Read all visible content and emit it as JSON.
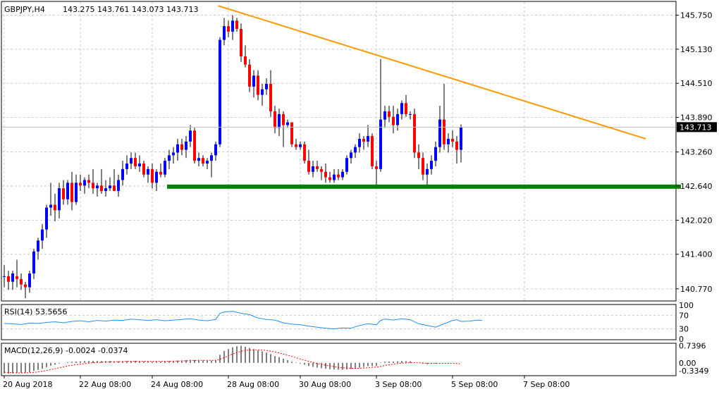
{
  "chart_data": {
    "type": "candlestick",
    "symbol_header": "GBPJPY,H4",
    "ohlc_header": "143.275 143.761 143.073 143.713",
    "current_price": 143.713,
    "current_price_label": "143.713",
    "price_ylim": [
      140.55,
      146.0
    ],
    "price_ticks": [
      "145.750",
      "145.130",
      "144.510",
      "143.890",
      "143.260",
      "142.640",
      "142.020",
      "141.400",
      "140.770"
    ],
    "x_labels": [
      "20 Aug 2018",
      "22 Aug 08:00",
      "24 Aug 08:00",
      "28 Aug 08:00",
      "30 Aug 08:00",
      "3 Sep 08:00",
      "5 Sep 08:00",
      "7 Sep 08:00"
    ],
    "x_label_bars": [
      0,
      18,
      35,
      53,
      70,
      88,
      106,
      123
    ],
    "candles": [
      [
        141.0,
        141.2,
        140.8,
        141.0
      ],
      [
        141.0,
        141.1,
        140.75,
        140.9
      ],
      [
        140.9,
        141.1,
        140.75,
        141.05
      ],
      [
        141.0,
        141.3,
        140.8,
        140.95
      ],
      [
        140.95,
        141.05,
        140.75,
        140.85
      ],
      [
        140.85,
        140.9,
        140.6,
        140.8
      ],
      [
        140.8,
        141.1,
        140.7,
        141.05
      ],
      [
        141.05,
        141.5,
        140.95,
        141.45
      ],
      [
        141.45,
        141.7,
        141.3,
        141.65
      ],
      [
        141.65,
        141.95,
        141.5,
        141.85
      ],
      [
        141.85,
        142.3,
        141.7,
        142.25
      ],
      [
        142.25,
        142.7,
        142.1,
        142.3
      ],
      [
        142.3,
        142.5,
        142.0,
        142.2
      ],
      [
        142.2,
        142.7,
        142.05,
        142.6
      ],
      [
        142.6,
        142.75,
        142.3,
        142.4
      ],
      [
        142.4,
        142.75,
        142.3,
        142.7
      ],
      [
        142.7,
        142.9,
        142.2,
        142.35
      ],
      [
        142.35,
        142.85,
        142.3,
        142.7
      ],
      [
        142.7,
        142.85,
        142.55,
        142.65
      ],
      [
        142.65,
        142.8,
        142.5,
        142.75
      ],
      [
        142.75,
        142.85,
        142.6,
        142.7
      ],
      [
        142.7,
        142.95,
        142.5,
        142.6
      ],
      [
        142.6,
        142.7,
        142.45,
        142.65
      ],
      [
        142.65,
        142.95,
        142.5,
        142.55
      ],
      [
        142.55,
        142.75,
        142.45,
        142.6
      ],
      [
        142.6,
        142.8,
        142.55,
        142.65
      ],
      [
        142.65,
        142.95,
        142.55,
        142.55
      ],
      [
        142.55,
        142.85,
        142.45,
        142.75
      ],
      [
        142.75,
        143.1,
        142.65,
        142.95
      ],
      [
        142.95,
        143.2,
        142.85,
        143.05
      ],
      [
        143.05,
        143.25,
        142.95,
        143.15
      ],
      [
        143.15,
        143.25,
        142.95,
        143.0
      ],
      [
        143.0,
        143.2,
        142.9,
        143.05
      ],
      [
        143.05,
        143.1,
        142.8,
        142.85
      ],
      [
        142.85,
        143.0,
        142.7,
        142.95
      ],
      [
        142.95,
        143.05,
        142.6,
        142.7
      ],
      [
        142.7,
        142.95,
        142.55,
        142.9
      ],
      [
        142.9,
        143.05,
        142.8,
        142.85
      ],
      [
        142.85,
        143.15,
        142.8,
        143.1
      ],
      [
        143.1,
        143.3,
        142.95,
        143.2
      ],
      [
        143.2,
        143.35,
        143.05,
        143.25
      ],
      [
        143.25,
        143.5,
        143.1,
        143.4
      ],
      [
        143.4,
        143.5,
        143.2,
        143.3
      ],
      [
        143.3,
        143.55,
        143.15,
        143.45
      ],
      [
        143.45,
        143.75,
        143.35,
        143.65
      ],
      [
        143.65,
        143.7,
        143.05,
        143.1
      ],
      [
        143.1,
        143.25,
        143.0,
        143.15
      ],
      [
        143.15,
        143.2,
        143.0,
        143.05
      ],
      [
        143.05,
        143.15,
        142.95,
        143.1
      ],
      [
        143.1,
        143.25,
        142.8,
        143.2
      ],
      [
        143.2,
        143.45,
        143.1,
        143.4
      ],
      [
        143.4,
        145.35,
        143.35,
        145.3
      ],
      [
        145.3,
        145.7,
        145.2,
        145.55
      ],
      [
        145.55,
        145.65,
        145.35,
        145.45
      ],
      [
        145.45,
        145.75,
        145.3,
        145.65
      ],
      [
        145.65,
        145.7,
        145.45,
        145.5
      ],
      [
        145.5,
        145.6,
        144.9,
        145.0
      ],
      [
        145.0,
        145.2,
        144.8,
        144.85
      ],
      [
        144.85,
        144.95,
        144.35,
        144.45
      ],
      [
        144.45,
        144.75,
        144.25,
        144.65
      ],
      [
        144.65,
        144.75,
        144.2,
        144.3
      ],
      [
        144.3,
        144.5,
        144.1,
        144.4
      ],
      [
        144.4,
        144.6,
        144.3,
        144.5
      ],
      [
        144.5,
        144.75,
        143.9,
        144.0
      ],
      [
        144.0,
        144.1,
        143.6,
        143.7
      ],
      [
        143.7,
        144.05,
        143.55,
        143.95
      ],
      [
        143.95,
        144.0,
        143.35,
        143.75
      ],
      [
        143.75,
        143.85,
        143.7,
        143.8
      ],
      [
        143.8,
        143.8,
        143.35,
        143.4
      ],
      [
        143.4,
        143.5,
        143.3,
        143.35
      ],
      [
        143.35,
        143.45,
        143.3,
        143.4
      ],
      [
        143.4,
        143.45,
        143.05,
        143.1
      ],
      [
        143.1,
        143.3,
        142.85,
        142.9
      ],
      [
        142.9,
        143.1,
        142.8,
        143.0
      ],
      [
        143.0,
        143.1,
        142.9,
        142.95
      ],
      [
        142.95,
        143.0,
        142.75,
        142.9
      ],
      [
        142.9,
        143.05,
        142.7,
        142.8
      ],
      [
        142.8,
        142.9,
        142.7,
        142.75
      ],
      [
        142.75,
        142.95,
        142.7,
        142.85
      ],
      [
        142.85,
        142.95,
        142.75,
        142.8
      ],
      [
        142.8,
        142.95,
        142.75,
        142.9
      ],
      [
        142.9,
        143.2,
        142.85,
        143.15
      ],
      [
        143.15,
        143.3,
        143.05,
        143.25
      ],
      [
        143.25,
        143.4,
        143.15,
        143.35
      ],
      [
        143.35,
        143.6,
        143.25,
        143.5
      ],
      [
        143.5,
        143.55,
        143.3,
        143.45
      ],
      [
        143.45,
        143.75,
        143.35,
        143.55
      ],
      [
        143.55,
        143.6,
        142.95,
        143.0
      ],
      [
        143.0,
        143.1,
        142.65,
        142.95
      ],
      [
        142.95,
        144.95,
        142.9,
        143.85
      ],
      [
        143.85,
        144.1,
        143.7,
        144.0
      ],
      [
        144.0,
        144.1,
        143.8,
        143.9
      ],
      [
        143.9,
        144.1,
        143.6,
        143.75
      ],
      [
        143.75,
        144.05,
        143.65,
        143.95
      ],
      [
        143.95,
        144.2,
        143.85,
        144.15
      ],
      [
        144.15,
        144.3,
        143.9,
        143.95
      ],
      [
        143.95,
        144.0,
        143.85,
        143.95
      ],
      [
        143.95,
        144.05,
        143.15,
        143.25
      ],
      [
        143.25,
        143.4,
        142.95,
        143.15
      ],
      [
        143.15,
        143.25,
        142.75,
        142.85
      ],
      [
        142.85,
        143.05,
        142.65,
        142.95
      ],
      [
        142.95,
        143.2,
        142.85,
        143.1
      ],
      [
        143.1,
        143.45,
        143.0,
        143.35
      ],
      [
        143.35,
        144.1,
        143.25,
        143.85
      ],
      [
        143.85,
        144.5,
        143.3,
        143.4
      ],
      [
        143.4,
        143.6,
        143.25,
        143.5
      ],
      [
        143.5,
        143.65,
        143.35,
        143.45
      ],
      [
        143.45,
        143.55,
        143.05,
        143.3
      ],
      [
        143.3,
        143.76,
        143.07,
        143.71
      ]
    ],
    "trendline": {
      "x1": 50.6,
      "y1": 145.92,
      "x2": 151.7,
      "y2": 143.5,
      "color": "#ff9900"
    },
    "support_line": {
      "x1": 38.5,
      "x2": 160.0,
      "y": 142.63,
      "color": "#008000"
    },
    "rsi": {
      "label": "RSI(14) 53.5656",
      "ylim": [
        0,
        100
      ],
      "ticks": [
        "100",
        "70",
        "30",
        "0"
      ],
      "levels": [
        70,
        30
      ],
      "value": 53.5656,
      "points": [
        [
          0,
          46
        ],
        [
          2,
          45
        ],
        [
          4,
          43
        ],
        [
          6,
          47
        ],
        [
          8,
          46
        ],
        [
          10,
          49
        ],
        [
          12,
          51
        ],
        [
          14,
          48
        ],
        [
          16,
          52
        ],
        [
          18,
          54
        ],
        [
          20,
          51
        ],
        [
          22,
          55
        ],
        [
          24,
          53
        ],
        [
          26,
          56
        ],
        [
          28,
          55
        ],
        [
          30,
          59
        ],
        [
          32,
          57
        ],
        [
          34,
          55
        ],
        [
          36,
          57
        ],
        [
          38,
          54
        ],
        [
          40,
          56
        ],
        [
          42,
          58
        ],
        [
          44,
          60
        ],
        [
          46,
          56
        ],
        [
          48,
          54
        ],
        [
          50,
          58
        ],
        [
          51,
          76
        ],
        [
          52,
          80
        ],
        [
          54,
          82
        ],
        [
          56,
          76
        ],
        [
          58,
          72
        ],
        [
          60,
          62
        ],
        [
          62,
          58
        ],
        [
          64,
          56
        ],
        [
          66,
          48
        ],
        [
          68,
          44
        ],
        [
          70,
          42
        ],
        [
          72,
          38
        ],
        [
          74,
          35
        ],
        [
          76,
          32
        ],
        [
          78,
          30
        ],
        [
          80,
          33
        ],
        [
          82,
          32
        ],
        [
          84,
          40
        ],
        [
          86,
          45
        ],
        [
          88,
          42
        ],
        [
          89,
          55
        ],
        [
          90,
          59
        ],
        [
          92,
          56
        ],
        [
          94,
          60
        ],
        [
          96,
          57
        ],
        [
          98,
          45
        ],
        [
          100,
          40
        ],
        [
          102,
          35
        ],
        [
          104,
          45
        ],
        [
          106,
          55
        ],
        [
          107,
          57
        ],
        [
          108,
          52
        ],
        [
          110,
          53
        ],
        [
          112,
          56
        ],
        [
          113,
          55
        ]
      ]
    },
    "macd": {
      "label": "MACD(12,26,9) -0.0024 -0.0374",
      "ylim": [
        -0.52,
        0.82
      ],
      "ticks": [
        "0.7396",
        "0.00",
        "-0.3349"
      ],
      "histogram": [
        -0.45,
        -0.46,
        -0.45,
        -0.44,
        -0.43,
        -0.42,
        -0.4,
        -0.35,
        -0.3,
        -0.25,
        -0.18,
        -0.12,
        -0.08,
        -0.03,
        0.0,
        0.03,
        0.05,
        0.06,
        0.07,
        0.08,
        0.08,
        0.09,
        0.09,
        0.08,
        0.08,
        0.08,
        0.07,
        0.07,
        0.08,
        0.08,
        0.09,
        0.09,
        0.08,
        0.07,
        0.07,
        0.06,
        0.06,
        0.06,
        0.07,
        0.08,
        0.09,
        0.1,
        0.11,
        0.12,
        0.14,
        0.13,
        0.12,
        0.11,
        0.1,
        0.1,
        0.11,
        0.35,
        0.52,
        0.6,
        0.68,
        0.72,
        0.74,
        0.7,
        0.65,
        0.6,
        0.55,
        0.5,
        0.45,
        0.38,
        0.3,
        0.25,
        0.18,
        0.12,
        0.06,
        0.02,
        -0.03,
        -0.08,
        -0.13,
        -0.17,
        -0.2,
        -0.23,
        -0.25,
        -0.27,
        -0.28,
        -0.29,
        -0.3,
        -0.28,
        -0.26,
        -0.24,
        -0.2,
        -0.17,
        -0.14,
        -0.13,
        -0.13,
        0.02,
        0.05,
        0.06,
        0.06,
        0.07,
        0.08,
        0.08,
        0.07,
        0.03,
        0.0,
        -0.04,
        -0.05,
        -0.04,
        -0.03,
        0.0,
        0.0,
        0.01,
        0.01,
        -0.01,
        -0.003
      ],
      "signal": [
        -0.4,
        -0.41,
        -0.42,
        -0.43,
        -0.43,
        -0.43,
        -0.42,
        -0.41,
        -0.39,
        -0.36,
        -0.33,
        -0.29,
        -0.25,
        -0.21,
        -0.17,
        -0.13,
        -0.1,
        -0.07,
        -0.05,
        -0.03,
        -0.01,
        0.01,
        0.02,
        0.03,
        0.04,
        0.05,
        0.05,
        0.06,
        0.06,
        0.07,
        0.07,
        0.07,
        0.07,
        0.07,
        0.07,
        0.07,
        0.07,
        0.07,
        0.07,
        0.07,
        0.08,
        0.08,
        0.09,
        0.09,
        0.1,
        0.1,
        0.11,
        0.11,
        0.11,
        0.11,
        0.11,
        0.16,
        0.23,
        0.31,
        0.38,
        0.45,
        0.5,
        0.54,
        0.56,
        0.57,
        0.57,
        0.56,
        0.54,
        0.51,
        0.47,
        0.43,
        0.38,
        0.33,
        0.28,
        0.22,
        0.17,
        0.12,
        0.07,
        0.02,
        -0.02,
        -0.06,
        -0.1,
        -0.13,
        -0.16,
        -0.19,
        -0.21,
        -0.22,
        -0.23,
        -0.23,
        -0.23,
        -0.22,
        -0.21,
        -0.19,
        -0.18,
        -0.15,
        -0.11,
        -0.08,
        -0.05,
        -0.03,
        -0.01,
        0.0,
        0.01,
        0.01,
        0.01,
        0.0,
        -0.01,
        -0.02,
        -0.02,
        -0.02,
        -0.02,
        -0.02,
        -0.02,
        -0.02,
        -0.04
      ]
    },
    "colors": {
      "bull": "#0000ff",
      "bear": "#ff0000",
      "rsi": "#1e90ff",
      "macd_hist": "#000000",
      "macd_signal": "#ff0000",
      "price_box_bg": "#000000",
      "price_box_text": "#ffffff",
      "current_line": "#c0c0c0"
    },
    "grid": true
  }
}
